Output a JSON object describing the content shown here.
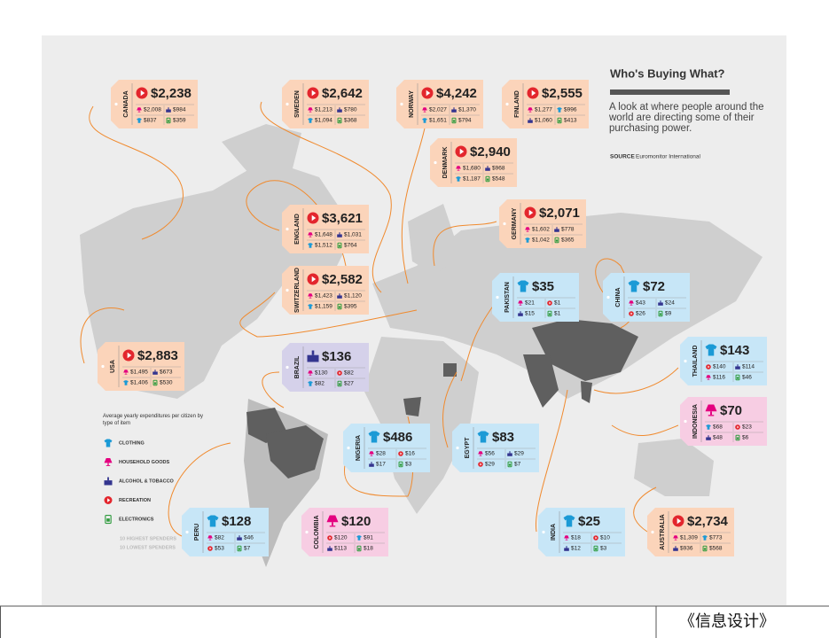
{
  "header": {
    "title": "Who's Buying What?",
    "subtitle": "A look at where people around the world are directing some of their purchasing power.",
    "source_label": "SOURCE",
    "source": "Euromonitor International"
  },
  "legend": {
    "caption": "Average yearly expenditures per citizen by type of item",
    "items": [
      "CLOTHING",
      "HOUSEHOLD GOODS",
      "ALCOHOL & TOBACCO",
      "RECREATION",
      "ELECTRONICS"
    ],
    "highest": "10 HIGHEST SPENDERS",
    "lowest": "10 LOWEST SPENDERS"
  },
  "tags": [
    {
      "country": "CANADA",
      "icon": "RECREATION",
      "total": "$2,238",
      "items": [
        {
          "icon": "HOUSEHOLD GOODS",
          "value": "$2,008"
        },
        {
          "icon": "ALCOHOL & TOBACCO",
          "value": "$984"
        },
        {
          "icon": "CLOTHING",
          "value": "$837"
        },
        {
          "icon": "ELECTRONICS",
          "value": "$359"
        }
      ]
    },
    {
      "country": "SWEDEN",
      "icon": "RECREATION",
      "total": "$2,642",
      "items": [
        {
          "icon": "HOUSEHOLD GOODS",
          "value": "$1,213"
        },
        {
          "icon": "ALCOHOL & TOBACCO",
          "value": "$780"
        },
        {
          "icon": "CLOTHING",
          "value": "$1,094"
        },
        {
          "icon": "ELECTRONICS",
          "value": "$368"
        }
      ]
    },
    {
      "country": "NORWAY",
      "icon": "RECREATION",
      "total": "$4,242",
      "items": [
        {
          "icon": "HOUSEHOLD GOODS",
          "value": "$2,027"
        },
        {
          "icon": "ALCOHOL & TOBACCO",
          "value": "$1,370"
        },
        {
          "icon": "CLOTHING",
          "value": "$1,651"
        },
        {
          "icon": "ELECTRONICS",
          "value": "$794"
        }
      ]
    },
    {
      "country": "FINLAND",
      "icon": "RECREATION",
      "total": "$2,555",
      "items": [
        {
          "icon": "HOUSEHOLD GOODS",
          "value": "$1,277"
        },
        {
          "icon": "CLOTHING",
          "value": "$996"
        },
        {
          "icon": "ALCOHOL & TOBACCO",
          "value": "$1,060"
        },
        {
          "icon": "ELECTRONICS",
          "value": "$413"
        }
      ]
    },
    {
      "country": "DENMARK",
      "icon": "RECREATION",
      "total": "$2,940",
      "items": [
        {
          "icon": "HOUSEHOLD GOODS",
          "value": "$1,680"
        },
        {
          "icon": "ALCOHOL & TOBACCO",
          "value": "$968"
        },
        {
          "icon": "CLOTHING",
          "value": "$1,187"
        },
        {
          "icon": "ELECTRONICS",
          "value": "$548"
        }
      ]
    },
    {
      "country": "ENGLAND",
      "icon": "RECREATION",
      "total": "$3,621",
      "items": [
        {
          "icon": "HOUSEHOLD GOODS",
          "value": "$1,648"
        },
        {
          "icon": "ALCOHOL & TOBACCO",
          "value": "$1,031"
        },
        {
          "icon": "CLOTHING",
          "value": "$1,512"
        },
        {
          "icon": "ELECTRONICS",
          "value": "$764"
        }
      ]
    },
    {
      "country": "GERMANY",
      "icon": "RECREATION",
      "total": "$2,071",
      "items": [
        {
          "icon": "HOUSEHOLD GOODS",
          "value": "$1,602"
        },
        {
          "icon": "ALCOHOL & TOBACCO",
          "value": "$778"
        },
        {
          "icon": "CLOTHING",
          "value": "$1,042"
        },
        {
          "icon": "ELECTRONICS",
          "value": "$365"
        }
      ]
    },
    {
      "country": "SWITZERLAND",
      "icon": "RECREATION",
      "total": "$2,582",
      "items": [
        {
          "icon": "HOUSEHOLD GOODS",
          "value": "$1,423"
        },
        {
          "icon": "ALCOHOL & TOBACCO",
          "value": "$1,120"
        },
        {
          "icon": "CLOTHING",
          "value": "$1,159"
        },
        {
          "icon": "ELECTRONICS",
          "value": "$395"
        }
      ]
    },
    {
      "country": "USA",
      "icon": "RECREATION",
      "total": "$2,883",
      "items": [
        {
          "icon": "HOUSEHOLD GOODS",
          "value": "$1,495"
        },
        {
          "icon": "ALCOHOL & TOBACCO",
          "value": "$673"
        },
        {
          "icon": "CLOTHING",
          "value": "$1,406"
        },
        {
          "icon": "ELECTRONICS",
          "value": "$530"
        }
      ]
    },
    {
      "country": "PAKISTAN",
      "icon": "CLOTHING",
      "total": "$35",
      "items": [
        {
          "icon": "HOUSEHOLD GOODS",
          "value": "$21"
        },
        {
          "icon": "RECREATION",
          "value": "$1"
        },
        {
          "icon": "ALCOHOL & TOBACCO",
          "value": "$15"
        },
        {
          "icon": "ELECTRONICS",
          "value": "$1"
        }
      ]
    },
    {
      "country": "CHINA",
      "icon": "CLOTHING",
      "total": "$72",
      "items": [
        {
          "icon": "HOUSEHOLD GOODS",
          "value": "$43"
        },
        {
          "icon": "ALCOHOL & TOBACCO",
          "value": "$24"
        },
        {
          "icon": "RECREATION",
          "value": "$26"
        },
        {
          "icon": "ELECTRONICS",
          "value": "$9"
        }
      ]
    },
    {
      "country": "THAILAND",
      "icon": "CLOTHING",
      "total": "$143",
      "items": [
        {
          "icon": "RECREATION",
          "value": "$140"
        },
        {
          "icon": "ALCOHOL & TOBACCO",
          "value": "$114"
        },
        {
          "icon": "HOUSEHOLD GOODS",
          "value": "$116"
        },
        {
          "icon": "ELECTRONICS",
          "value": "$46"
        }
      ]
    },
    {
      "country": "BRAZIL",
      "icon": "ALCOHOL & TOBACCO",
      "total": "$136",
      "items": [
        {
          "icon": "HOUSEHOLD GOODS",
          "value": "$130"
        },
        {
          "icon": "RECREATION",
          "value": "$82"
        },
        {
          "icon": "CLOTHING",
          "value": "$82"
        },
        {
          "icon": "ELECTRONICS",
          "value": "$27"
        }
      ]
    },
    {
      "country": "INDONESIA",
      "icon": "HOUSEHOLD GOODS",
      "total": "$70",
      "items": [
        {
          "icon": "CLOTHING",
          "value": "$68"
        },
        {
          "icon": "RECREATION",
          "value": "$23"
        },
        {
          "icon": "ALCOHOL & TOBACCO",
          "value": "$48"
        },
        {
          "icon": "ELECTRONICS",
          "value": "$6"
        }
      ]
    },
    {
      "country": "NIGERIA",
      "icon": "CLOTHING",
      "total": "$486",
      "items": [
        {
          "icon": "HOUSEHOLD GOODS",
          "value": "$28"
        },
        {
          "icon": "RECREATION",
          "value": "$16"
        },
        {
          "icon": "ALCOHOL & TOBACCO",
          "value": "$17"
        },
        {
          "icon": "ELECTRONICS",
          "value": "$3"
        }
      ]
    },
    {
      "country": "EGYPT",
      "icon": "CLOTHING",
      "total": "$83",
      "items": [
        {
          "icon": "HOUSEHOLD GOODS",
          "value": "$56"
        },
        {
          "icon": "ALCOHOL & TOBACCO",
          "value": "$29"
        },
        {
          "icon": "RECREATION",
          "value": "$29"
        },
        {
          "icon": "ELECTRONICS",
          "value": "$7"
        }
      ]
    },
    {
      "country": "PERU",
      "icon": "CLOTHING",
      "total": "$128",
      "items": [
        {
          "icon": "HOUSEHOLD GOODS",
          "value": "$82"
        },
        {
          "icon": "ALCOHOL & TOBACCO",
          "value": "$46"
        },
        {
          "icon": "RECREATION",
          "value": "$53"
        },
        {
          "icon": "ELECTRONICS",
          "value": "$7"
        }
      ]
    },
    {
      "country": "COLOMBIA",
      "icon": "HOUSEHOLD GOODS",
      "total": "$120",
      "items": [
        {
          "icon": "RECREATION",
          "value": "$120"
        },
        {
          "icon": "CLOTHING",
          "value": "$91"
        },
        {
          "icon": "ALCOHOL & TOBACCO",
          "value": "$113"
        },
        {
          "icon": "ELECTRONICS",
          "value": "$18"
        }
      ]
    },
    {
      "country": "INDIA",
      "icon": "CLOTHING",
      "total": "$25",
      "items": [
        {
          "icon": "HOUSEHOLD GOODS",
          "value": "$18"
        },
        {
          "icon": "RECREATION",
          "value": "$10"
        },
        {
          "icon": "ALCOHOL & TOBACCO",
          "value": "$12"
        },
        {
          "icon": "ELECTRONICS",
          "value": "$3"
        }
      ]
    },
    {
      "country": "AUSTRALIA",
      "icon": "RECREATION",
      "total": "$2,734",
      "items": [
        {
          "icon": "HOUSEHOLD GOODS",
          "value": "$1,309"
        },
        {
          "icon": "CLOTHING",
          "value": "$773"
        },
        {
          "icon": "ALCOHOL & TOBACCO",
          "value": "$936"
        },
        {
          "icon": "ELECTRONICS",
          "value": "$568"
        }
      ]
    }
  ],
  "footer": "《信息设计》"
}
